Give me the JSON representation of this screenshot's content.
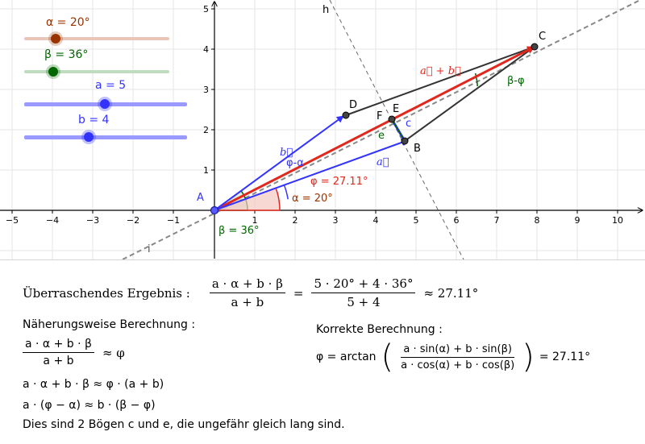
{
  "sliders": [
    {
      "label": "α = 20°",
      "color": "#993300",
      "track": "#e8c6b8"
    },
    {
      "label": "β = 36°",
      "color": "#006600",
      "track": "#bfdcbf"
    },
    {
      "label": "a = 5",
      "color": "#3333ff",
      "track": "#9999ff"
    },
    {
      "label": "b = 4",
      "color": "#3333ff",
      "track": "#9999ff"
    }
  ],
  "axes": {
    "x_ticks": [
      "−5",
      "−4",
      "−3",
      "−2",
      "−1",
      "1",
      "2",
      "3",
      "4",
      "5",
      "6",
      "7",
      "8",
      "9",
      "10"
    ],
    "y_ticks": [
      "1",
      "2",
      "3",
      "4",
      "5"
    ]
  },
  "points": {
    "A": "A",
    "B": "B",
    "C": "C",
    "D": "D",
    "E": "E",
    "F": "F"
  },
  "lines": {
    "h": "h",
    "i": "i"
  },
  "labels": {
    "vec_sum": "a⃗ + b⃗",
    "vec_a": "a⃗",
    "vec_b": "b⃗",
    "phi": "φ = 27.11°",
    "alpha": "α = 20°",
    "beta": "β = 36°",
    "phi_alpha": "φ-α",
    "beta_phi": "β-φ",
    "c": "c",
    "e": "e"
  },
  "panel": {
    "surprise_label": "Überraschendes Ergebnis :",
    "surprise_num": "a · α + b · β",
    "surprise_den": "a + b",
    "eq": "=",
    "surprise_num2": "5 · 20° + 4 · 36°",
    "surprise_den2": "5 + 4",
    "approx_result": "≈  27.11°",
    "naive_title": "Näherungsweise Berechnung :",
    "naive_num": "a · α + b · β",
    "naive_den": "a + b",
    "naive_rhs": "≈  φ",
    "naive_line2": "a · α + b · β ≈ φ · (a + b)",
    "naive_line3": "a · (φ − α) ≈ b · (β − φ)",
    "conclusion": "Dies sind 2 Bögen c und e,  die ungefähr gleich lang sind.",
    "correct_title": "Korrekte Berechnung :",
    "correct_lhs": "φ = arctan",
    "correct_num": "a · sin(α) + b · sin(β)",
    "correct_den": "a ·  cos(α) + b · cos(β)",
    "correct_result": "=  27.11°"
  }
}
